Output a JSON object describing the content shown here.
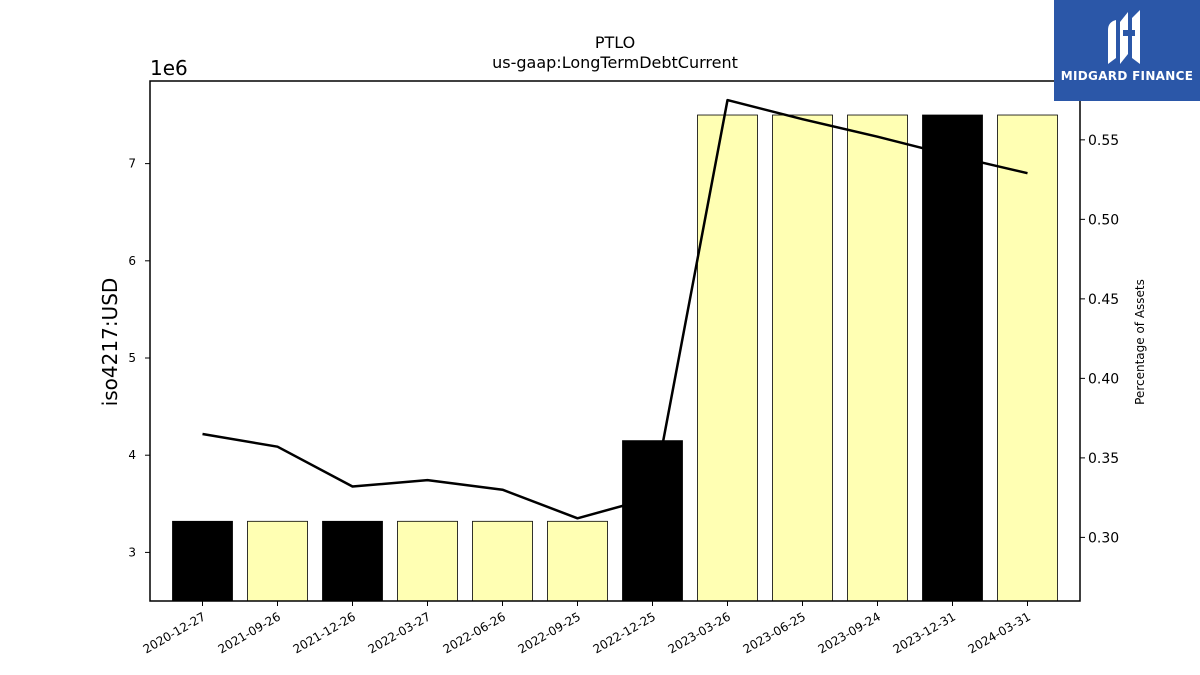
{
  "chart_data": {
    "type": "bar",
    "title": "PTLO",
    "subtitle": "us-gaap:LongTermDebtCurrent",
    "ylabel": "iso4217:USD",
    "y_offset_label": "1e6",
    "y2label": "Percentage of Assets",
    "ylim": [
      2.5,
      7.85
    ],
    "yticks": [
      3,
      4,
      5,
      6,
      7
    ],
    "y2lim": [
      0.26,
      0.587
    ],
    "y2ticks": [
      "0.30",
      "0.35",
      "0.40",
      "0.45",
      "0.50",
      "0.55"
    ],
    "categories": [
      "2020-12-27",
      "2021-09-26",
      "2021-12-26",
      "2022-03-27",
      "2022-06-26",
      "2022-09-25",
      "2022-12-25",
      "2023-03-26",
      "2023-06-25",
      "2023-09-24",
      "2023-12-31",
      "2024-03-31"
    ],
    "values": [
      3.32,
      3.32,
      3.32,
      3.32,
      3.32,
      3.32,
      4.15,
      7.5,
      7.5,
      7.5,
      7.5,
      7.5
    ],
    "bar_colors": [
      "#000000",
      "#ffffb3",
      "#000000",
      "#ffffb3",
      "#ffffb3",
      "#ffffb3",
      "#000000",
      "#ffffb3",
      "#ffffb3",
      "#ffffb3",
      "#000000",
      "#ffffb3"
    ],
    "line_values": [
      0.365,
      0.357,
      0.332,
      0.336,
      0.33,
      0.312,
      0.325,
      0.575,
      0.563,
      0.552,
      0.54,
      0.529
    ],
    "line_color": "#000000",
    "grid": false
  },
  "logo": {
    "text": "MIDGARD FINANCE",
    "background": "#2b57a8"
  }
}
